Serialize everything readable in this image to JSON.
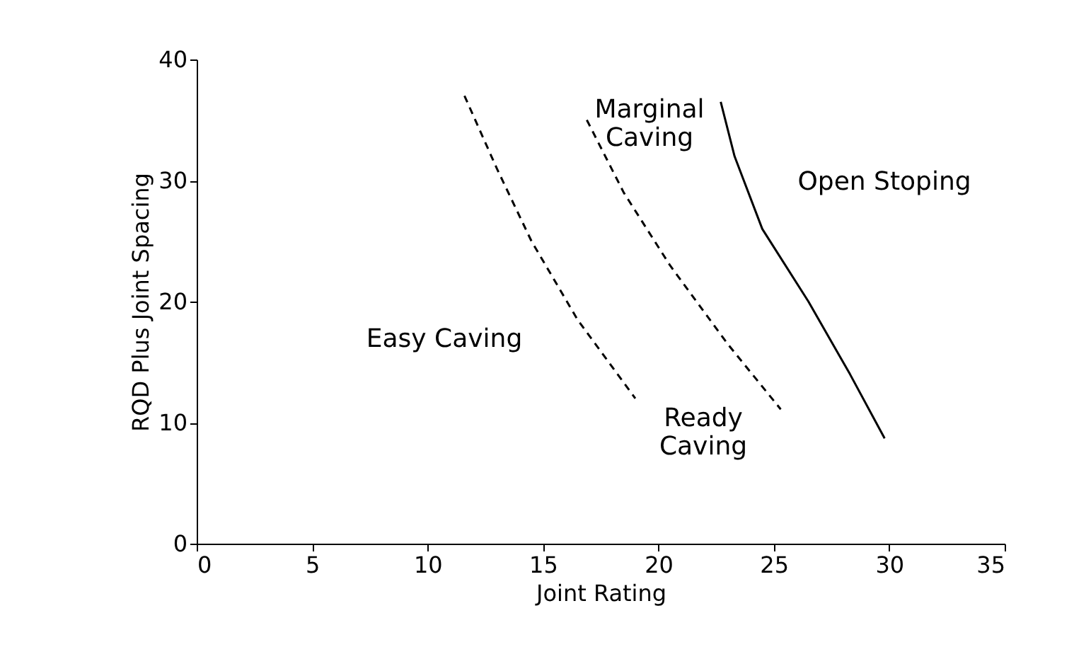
{
  "chart_data": {
    "type": "line",
    "xlabel": "Joint Rating",
    "ylabel": "RQD Plus Joint Spacing",
    "xlim": [
      0,
      35
    ],
    "ylim": [
      0,
      40
    ],
    "xticks": [
      0,
      5,
      10,
      15,
      20,
      25,
      30,
      35
    ],
    "yticks": [
      0,
      10,
      20,
      30,
      40
    ],
    "grid": false,
    "marker": "none",
    "series": [
      {
        "color": "#000000",
        "line_style": "dashed",
        "x": [
          11.6,
          13,
          14.5,
          16.5,
          19
        ],
        "values": [
          37,
          31,
          25,
          18.5,
          12
        ]
      },
      {
        "color": "#000000",
        "line_style": "dashed",
        "x": [
          16.9,
          18.5,
          20.5,
          23,
          25.3
        ],
        "values": [
          35,
          29,
          23,
          16.5,
          11.1
        ]
      },
      {
        "color": "#000000",
        "line_style": "solid",
        "x": [
          22.7,
          23.3,
          24.5,
          26.5,
          28.3,
          29.8
        ],
        "values": [
          36.5,
          32,
          26,
          20,
          14,
          8.7
        ]
      }
    ],
    "annotations": [
      "Easy Caving",
      "Ready\nCaving",
      "Marginal\nCaving",
      "Open Stoping"
    ]
  }
}
